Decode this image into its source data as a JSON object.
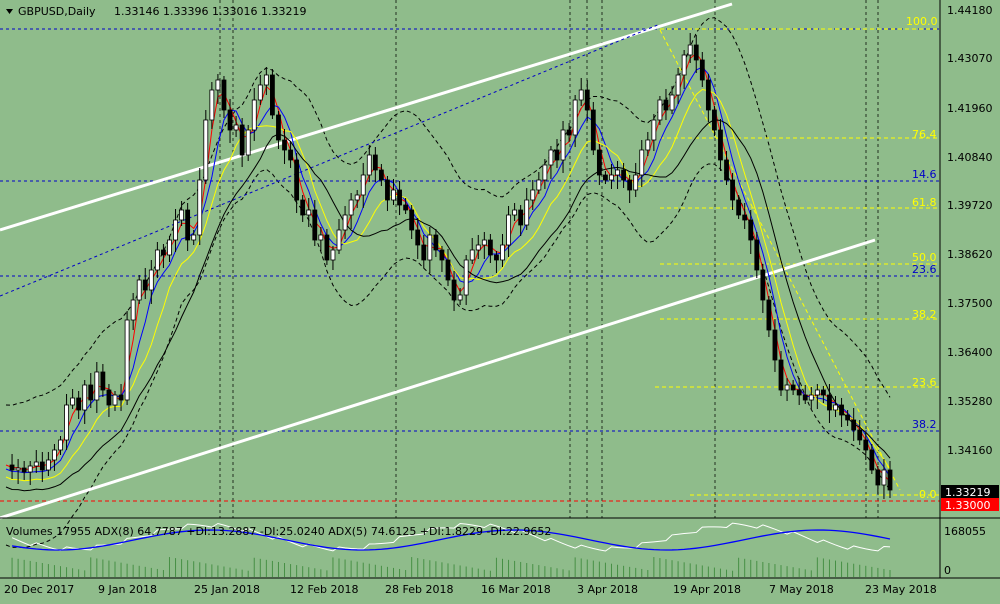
{
  "header": {
    "symbol_text": "GBPUSD,Daily",
    "ohlc_text": "1.33146 1.33396 1.33016 1.33219",
    "dropdown_icon": "triangle-down-icon"
  },
  "price_axis": {
    "ticks": [
      "1.44180",
      "1.43070",
      "1.41960",
      "1.40840",
      "1.39720",
      "1.38620",
      "1.37500",
      "1.36400",
      "1.35280",
      "1.34160"
    ],
    "current_price": "1.33219",
    "level_price": "1.33000",
    "current_price_color": "#000000",
    "level_price_color": "#ff0000"
  },
  "fib_levels_yellow": [
    {
      "label": "100.0"
    },
    {
      "label": "76.4"
    },
    {
      "label": "61.8"
    },
    {
      "label": "50.0"
    },
    {
      "label": "38.2"
    },
    {
      "label": "23.6"
    },
    {
      "label": "0.0"
    }
  ],
  "fib_levels_blue": [
    {
      "label": "14.6"
    },
    {
      "label": "23.6"
    },
    {
      "label": "38.2"
    }
  ],
  "indicator_panel": {
    "text": "Volumes 17955  ADX(8) 64.7787 +DI:13.2887 -DI:25.0240  ADX(5) 74.6125 +DI:1.8229 -DI:22.9652",
    "tick_top": "168055",
    "tick_bottom": "0"
  },
  "time_axis": {
    "labels": [
      "20 Dec 2017",
      "9 Jan 2018",
      "25 Jan 2018",
      "12 Feb 2018",
      "28 Feb 2018",
      "16 Mar 2018",
      "3 Apr 2018",
      "19 Apr 2018",
      "7 May 2018",
      "23 May 2018"
    ]
  },
  "colors": {
    "background": "#8fbc8b",
    "bull_candle": "#ffffff",
    "bear_candle": "#000000",
    "ma_red": "#ff0000",
    "ma_blue": "#0000ff",
    "ma_yellow": "#ffff00",
    "ma_black": "#000000",
    "fib_yellow": "#ffff00",
    "level_blue": "#0000c8",
    "channel": "#ffffff"
  }
}
